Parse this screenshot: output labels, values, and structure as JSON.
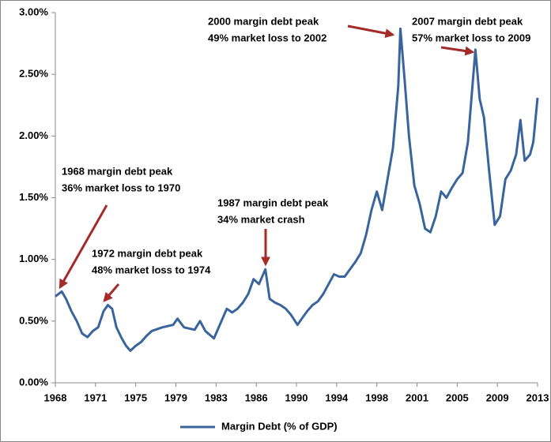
{
  "chart_data": {
    "type": "line",
    "series": [
      {
        "name": "Margin Debt (% of GDP)",
        "color": "#3a659c",
        "x": [
          1968.0,
          1968.3,
          1968.6,
          1969.0,
          1969.5,
          1970.0,
          1970.5,
          1971.0,
          1971.5,
          1972.0,
          1972.5,
          1972.9,
          1973.3,
          1973.7,
          1974.2,
          1974.6,
          1975.0,
          1975.5,
          1976.0,
          1976.5,
          1977.0,
          1978.0,
          1979.0,
          1979.4,
          1980.0,
          1981.0,
          1981.5,
          1982.0,
          1982.8,
          1983.5,
          1984.0,
          1984.5,
          1985.0,
          1985.5,
          1986.0,
          1986.5,
          1987.0,
          1987.6,
          1988.0,
          1988.5,
          1989.0,
          1989.5,
          1990.0,
          1990.6,
          1991.0,
          1991.5,
          1992.0,
          1992.5,
          1993.0,
          1993.5,
          1994.0,
          1994.5,
          1995.0,
          1995.5,
          1996.0,
          1996.5,
          1997.0,
          1997.5,
          1998.0,
          1998.5,
          1999.0,
          1999.5,
          2000.0,
          2000.2,
          2000.6,
          2001.0,
          2001.5,
          2002.0,
          2002.5,
          2003.0,
          2003.5,
          2004.0,
          2004.5,
          2005.0,
          2005.5,
          2006.0,
          2006.5,
          2007.2,
          2007.6,
          2008.0,
          2008.5,
          2009.0,
          2009.5,
          2010.0,
          2010.5,
          2011.0,
          2011.4,
          2011.8,
          2012.3,
          2012.6,
          2013.0
        ],
        "values": [
          0.7,
          0.72,
          0.74,
          0.68,
          0.58,
          0.5,
          0.4,
          0.37,
          0.42,
          0.45,
          0.58,
          0.63,
          0.6,
          0.45,
          0.36,
          0.3,
          0.26,
          0.3,
          0.33,
          0.38,
          0.42,
          0.45,
          0.47,
          0.52,
          0.45,
          0.43,
          0.5,
          0.42,
          0.36,
          0.5,
          0.6,
          0.57,
          0.6,
          0.65,
          0.72,
          0.84,
          0.8,
          0.92,
          0.68,
          0.65,
          0.63,
          0.6,
          0.55,
          0.47,
          0.52,
          0.58,
          0.63,
          0.66,
          0.72,
          0.8,
          0.88,
          0.86,
          0.86,
          0.92,
          0.98,
          1.05,
          1.2,
          1.4,
          1.55,
          1.4,
          1.65,
          1.9,
          2.4,
          2.87,
          2.45,
          2.0,
          1.6,
          1.45,
          1.25,
          1.22,
          1.35,
          1.55,
          1.5,
          1.58,
          1.65,
          1.7,
          1.95,
          2.7,
          2.3,
          2.15,
          1.7,
          1.28,
          1.35,
          1.65,
          1.72,
          1.85,
          2.13,
          1.8,
          1.85,
          1.95,
          2.31
        ]
      }
    ],
    "xlim": [
      1968,
      2013
    ],
    "xticks": [
      {
        "value": 1968,
        "label": "1968"
      },
      {
        "value": 1971.75,
        "label": "1971"
      },
      {
        "value": 1975.5,
        "label": "1975"
      },
      {
        "value": 1979.25,
        "label": "1979"
      },
      {
        "value": 1983,
        "label": "1983"
      },
      {
        "value": 1986.75,
        "label": "1986"
      },
      {
        "value": 1990.5,
        "label": "1990"
      },
      {
        "value": 1994.25,
        "label": "1994"
      },
      {
        "value": 1998,
        "label": "1998"
      },
      {
        "value": 2001.75,
        "label": "2001"
      },
      {
        "value": 2005.5,
        "label": "2005"
      },
      {
        "value": 2009.25,
        "label": "2009"
      },
      {
        "value": 2013,
        "label": "2013"
      }
    ],
    "ylim": [
      0,
      3
    ],
    "yticks": [
      {
        "value": 0,
        "label": "0.00%"
      },
      {
        "value": 0.5,
        "label": "0.50%"
      },
      {
        "value": 1,
        "label": "1.00%"
      },
      {
        "value": 1.5,
        "label": "1.50%"
      },
      {
        "value": 2,
        "label": "2.00%"
      },
      {
        "value": 2.5,
        "label": "2.50%"
      },
      {
        "value": 3,
        "label": "3.00%"
      }
    ],
    "annotations": [
      [
        "1968 margin debt peak",
        "36% market loss to 1970"
      ],
      [
        "1972 margin debt peak",
        "48% market loss to 1974"
      ],
      [
        "1987 margin debt peak",
        "34% market crash"
      ],
      [
        "2000 margin debt peak",
        "49% market loss to 2002"
      ],
      [
        "2007 margin debt peak",
        "57% market loss to 2009"
      ]
    ]
  }
}
